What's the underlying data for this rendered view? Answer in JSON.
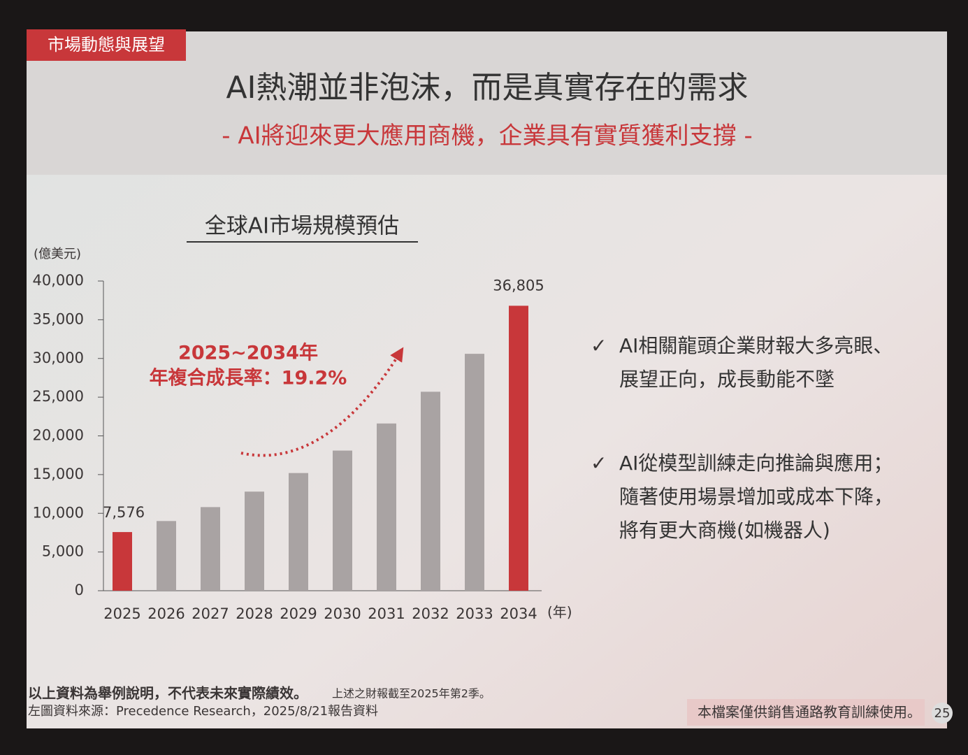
{
  "header": {
    "tag": "市場動態與展望",
    "title": "AI熱潮並非泡沫，而是真實存在的需求",
    "subtitle": "- AI將迎來更大應用商機，企業具有實質獲利支撐 -"
  },
  "chart_data": {
    "type": "bar",
    "title": "全球AI市場規模預估",
    "y_label": "(億美元)",
    "x_label": "(年)",
    "categories": [
      "2025",
      "2026",
      "2027",
      "2028",
      "2029",
      "2030",
      "2031",
      "2032",
      "2033",
      "2034"
    ],
    "values": [
      7576,
      9000,
      10800,
      12800,
      15200,
      18100,
      21600,
      25700,
      30600,
      36805
    ],
    "value_labels": [
      "7,576",
      null,
      null,
      null,
      null,
      null,
      null,
      null,
      null,
      "36,805"
    ],
    "colors": [
      "#c8373a",
      "#a9a3a3",
      "#a9a3a3",
      "#a9a3a3",
      "#a9a3a3",
      "#a9a3a3",
      "#a9a3a3",
      "#a9a3a3",
      "#a9a3a3",
      "#c8373a"
    ],
    "ylim": [
      0,
      40000
    ],
    "yticks": [
      0,
      {
        "value": 5000,
        "label": "5,000"
      },
      {
        "value": 10000,
        "label": "10,000"
      },
      {
        "value": 15000,
        "label": "15,000"
      },
      {
        "value": 20000,
        "label": "20,000"
      },
      {
        "value": 25000,
        "label": "25,000"
      },
      {
        "value": 30000,
        "label": "30,000"
      },
      {
        "value": 35000,
        "label": "35,000"
      },
      {
        "value": 40000,
        "label": "40,000"
      }
    ],
    "annotation": [
      "2025~2034年",
      "年複合成長率：19.2%"
    ]
  },
  "bullets": [
    [
      "AI相關龍頭企業財報大多亮眼、",
      "展望正向，成長動能不墜"
    ],
    [
      "AI從模型訓練走向推論與應用；",
      "隨著使用場景增加或成本下降，",
      "將有更大商機(如機器人)"
    ]
  ],
  "footer": {
    "disclaimer": "以上資料為舉例說明，不代表未來實際績效。",
    "note": "上述之財報截至2025年第2季。",
    "source": "左圖資料來源：Precedence Research，2025/8/21報告資料",
    "usage": "本檔案僅供銷售通路教育訓練使用。",
    "page": "25"
  }
}
